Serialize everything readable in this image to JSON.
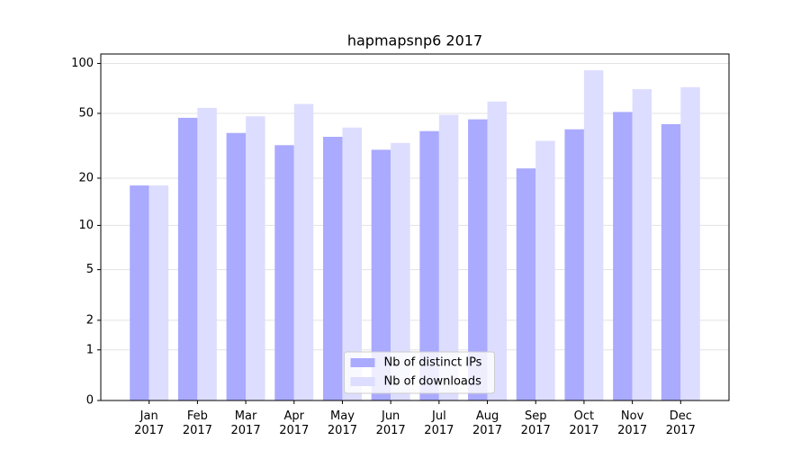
{
  "chart_data": {
    "type": "bar",
    "title": "hapmapsnp6 2017",
    "categories": [
      "Jan\n2017",
      "Feb\n2017",
      "Mar\n2017",
      "Apr\n2017",
      "May\n2017",
      "Jun\n2017",
      "Jul\n2017",
      "Aug\n2017",
      "Sep\n2017",
      "Oct\n2017",
      "Nov\n2017",
      "Dec\n2017"
    ],
    "series": [
      {
        "name": "Nb of distinct IPs",
        "color": "#aaaaff",
        "values": [
          18,
          47,
          38,
          32,
          36,
          30,
          39,
          46,
          23,
          40,
          51,
          43
        ]
      },
      {
        "name": "Nb of downloads",
        "color": "#ddddff",
        "values": [
          18,
          54,
          48,
          57,
          41,
          33,
          49,
          59,
          34,
          91,
          70,
          72
        ]
      }
    ],
    "ylim": [
      0,
      114
    ],
    "yticks": [
      0,
      1,
      2,
      5,
      10,
      20,
      50,
      100
    ],
    "log_scale": true,
    "grid": true,
    "legend": "lower center"
  }
}
